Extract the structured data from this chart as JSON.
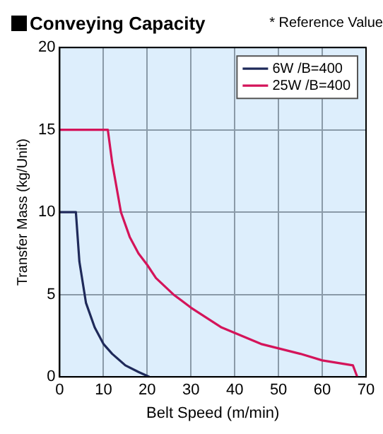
{
  "chart_data": {
    "type": "line",
    "title": "Conveying Capacity",
    "annotations": [
      "* Reference Value"
    ],
    "xlabel": "Belt Speed (m/min)",
    "ylabel": "Transfer Mass (kg/Unit)",
    "xlim": [
      0,
      70
    ],
    "xticks": [
      0,
      10,
      20,
      30,
      40,
      50,
      60,
      70
    ],
    "ylim": [
      0,
      20
    ],
    "yticks": [
      0,
      5,
      10,
      15,
      20
    ],
    "grid": true,
    "legend": "top right",
    "marker": "none",
    "line_style": "solid",
    "series": [
      {
        "name": "6W /B=400",
        "color": "#1f2a5a",
        "x": [
          0,
          3.7,
          4.5,
          6,
          8,
          10,
          12,
          15,
          18,
          20.5
        ],
        "values": [
          10,
          10,
          7,
          4.5,
          3,
          2,
          1.4,
          0.7,
          0.3,
          0
        ]
      },
      {
        "name": "25W /B=400",
        "color": "#d4145a",
        "x": [
          0,
          11,
          12,
          14,
          16,
          18,
          20,
          22,
          26,
          30,
          37,
          46,
          55,
          60,
          67,
          68
        ],
        "values": [
          15,
          15,
          13,
          10,
          8.5,
          7.5,
          6.8,
          6,
          5,
          4.2,
          3,
          2,
          1.4,
          1,
          0.7,
          0
        ]
      }
    ]
  }
}
